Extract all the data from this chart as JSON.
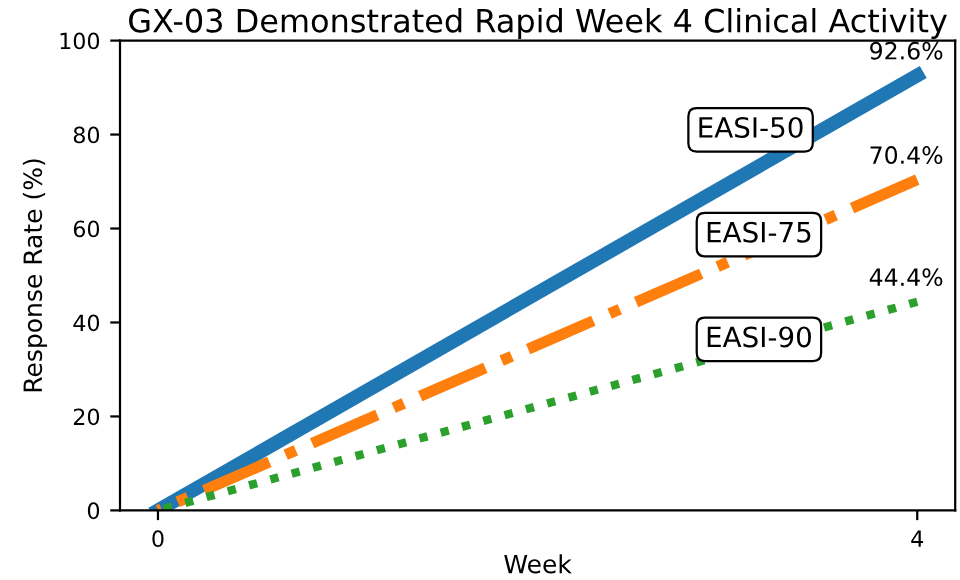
{
  "chart_data": {
    "type": "line",
    "title": "GX-03 Demonstrated Rapid Week 4 Clinical Activity",
    "xlabel": "Week",
    "ylabel": "Response Rate (%)",
    "x": [
      0,
      4
    ],
    "xlim": [
      -0.2,
      4.2
    ],
    "xticks": [
      0,
      4
    ],
    "ylim": [
      0,
      100
    ],
    "yticks": [
      0,
      20,
      40,
      60,
      80,
      100
    ],
    "grid": false,
    "legend": false,
    "series": [
      {
        "color": "#1f77b4",
        "values": [
          0,
          92.6
        ],
        "line_style": "solid",
        "value_labels": [
          null,
          "92.6%"
        ]
      },
      {
        "color": "#ff7f0e",
        "values": [
          0,
          70.4
        ],
        "line_style": "dashed",
        "value_labels": [
          null,
          "70.4%"
        ]
      },
      {
        "color": "#2ca02c",
        "values": [
          0,
          44.4
        ],
        "line_style": "dotted",
        "value_labels": [
          null,
          "44.4%"
        ]
      }
    ],
    "annotations": [
      "EASI-50",
      "EASI-75",
      "EASI-90"
    ]
  }
}
